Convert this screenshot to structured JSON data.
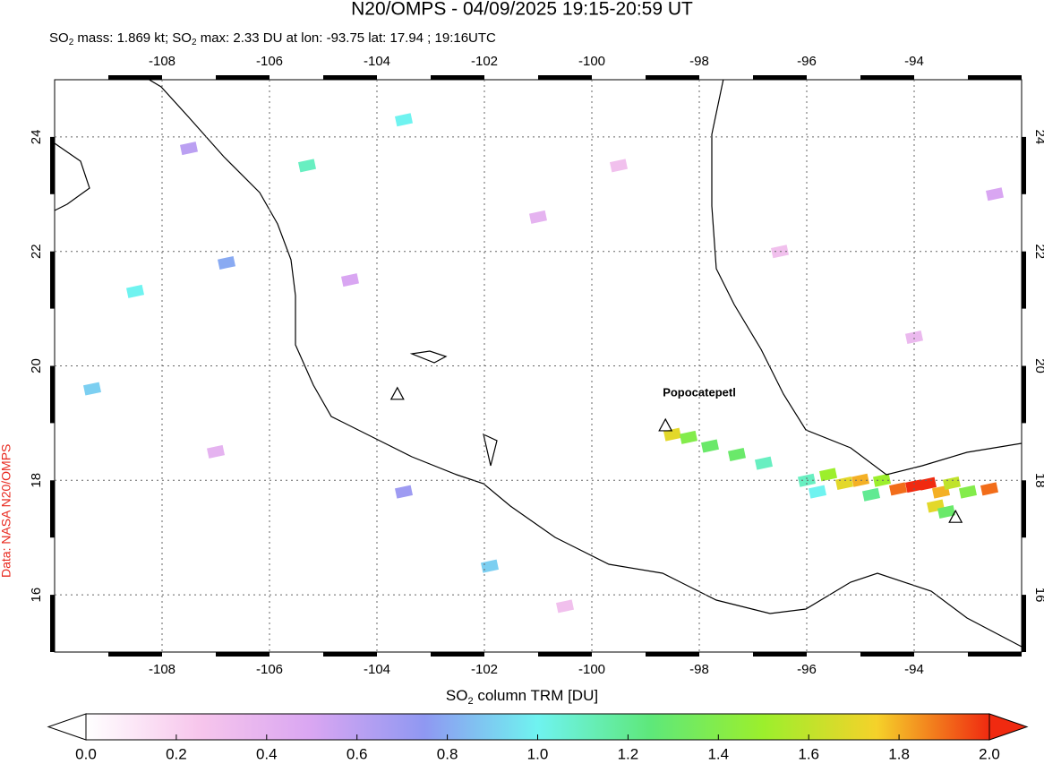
{
  "chart_data": {
    "type": "map",
    "title": "N20/OMPS - 04/09/2025 19:15-20:59 UT",
    "subtitle": [
      "SO",
      "2",
      " mass: 1.869 kt; SO",
      "2",
      " max: 2.33 DU at lon: -93.75 lat: 17.94 ; 19:16UTC"
    ],
    "credit": "Data: NASA N20/OMPS",
    "xlim": [
      -110,
      -92
    ],
    "ylim": [
      15,
      25
    ],
    "xticks": [
      -108,
      -106,
      -104,
      -102,
      -100,
      -98,
      -96,
      -94
    ],
    "yticks": [
      16,
      18,
      20,
      22,
      24
    ],
    "grid": true,
    "volcanoes": [
      {
        "name": "Popocatepetl",
        "lon": -98.63,
        "lat": 18.96
      },
      {
        "lon": -103.62,
        "lat": 19.51
      },
      {
        "lon": -93.23,
        "lat": 17.36
      }
    ],
    "cells": {
      "lon": [
        -98.5,
        -98.2,
        -97.8,
        -97.3,
        -96.8,
        -96.0,
        -95.6,
        -95.3,
        -95.0,
        -94.6,
        -94.3,
        -94.0,
        -93.75,
        -93.5,
        -93.3,
        -93.0,
        -92.6,
        -93.6,
        -93.4,
        -95.8,
        -94.8,
        -107.5,
        -104.5,
        -101.0,
        -103.5,
        -106.8,
        -99.5,
        -96.5,
        -109.3,
        -103.5,
        -101.9,
        -100.5,
        -107.0,
        -92.5,
        -94.0,
        -108.5,
        -105.3
      ],
      "lat": [
        18.8,
        18.75,
        18.6,
        18.45,
        18.3,
        18.0,
        18.1,
        17.95,
        18.0,
        18.0,
        17.85,
        17.9,
        17.94,
        17.8,
        17.95,
        17.8,
        17.85,
        17.55,
        17.45,
        17.8,
        17.75,
        23.8,
        21.5,
        22.6,
        24.3,
        21.8,
        23.5,
        22.0,
        19.6,
        17.8,
        16.5,
        15.8,
        18.5,
        23.0,
        20.5,
        21.3,
        23.5
      ],
      "values": [
        1.7,
        1.4,
        1.3,
        1.3,
        1.1,
        1.1,
        1.5,
        1.7,
        1.8,
        1.5,
        1.9,
        2.1,
        2.33,
        1.8,
        1.6,
        1.4,
        1.9,
        1.7,
        1.3,
        1.0,
        1.2,
        0.6,
        0.5,
        0.4,
        1.0,
        0.8,
        0.3,
        0.3,
        0.9,
        0.7,
        0.9,
        0.3,
        0.4,
        0.5,
        0.35,
        1.0,
        1.1
      ]
    },
    "colorbar": {
      "label": [
        "SO",
        "2",
        " column TRM [DU]"
      ],
      "clim": [
        0,
        2
      ],
      "colorscale": [
        "#ffffff",
        "#f7c6ec",
        "#d9a6f2",
        "#8f98f2",
        "#6ff3f0",
        "#5ee87a",
        "#9cef2c",
        "#f5d22a",
        "#f02a10"
      ],
      "ticks": [
        {
          "value": 0,
          "label": "0.0"
        },
        {
          "value": 0.2,
          "label": "0.2"
        },
        {
          "value": 0.4,
          "label": "0.4"
        },
        {
          "value": 0.6,
          "label": "0.6"
        },
        {
          "value": 0.8,
          "label": "0.8"
        },
        {
          "value": 1.0,
          "label": "1.0"
        },
        {
          "value": 1.2,
          "label": "1.2"
        },
        {
          "value": 1.4,
          "label": "1.4"
        },
        {
          "value": 1.6,
          "label": "1.6"
        },
        {
          "value": 1.8,
          "label": "1.8"
        },
        {
          "value": 2.0,
          "label": "2.0"
        }
      ]
    }
  }
}
